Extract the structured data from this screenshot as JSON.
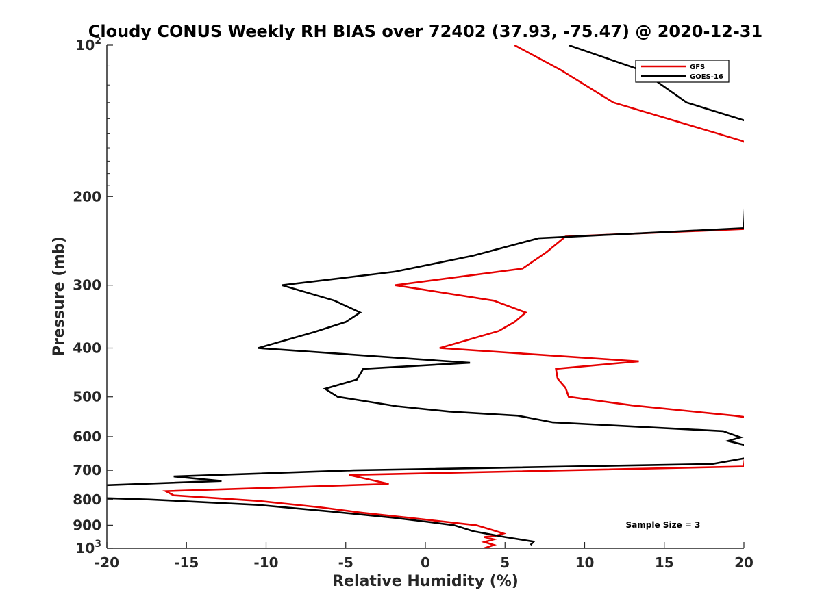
{
  "chart_data": {
    "type": "line",
    "title": "Cloudy CONUS Weekly RH BIAS over 72402 (37.93, -75.47) @ 2020-12-31",
    "xlabel": "Relative Humidity (%)",
    "ylabel": "Pressure (mb)",
    "xlim": [
      -20,
      20
    ],
    "ylim": [
      100,
      1000
    ],
    "y_scale": "log",
    "y_reversed": true,
    "x_ticks": [
      -20,
      -15,
      -10,
      -5,
      0,
      5,
      10,
      15,
      20
    ],
    "x_tick_labels": [
      "-20",
      "-15",
      "-10",
      "-5",
      "0",
      "5",
      "10",
      "15",
      "20"
    ],
    "y_ticks": [
      {
        "value": 100,
        "base": "10",
        "exp": "2"
      },
      {
        "value": 200,
        "label": "200"
      },
      {
        "value": 300,
        "label": "300"
      },
      {
        "value": 400,
        "label": "400"
      },
      {
        "value": 500,
        "label": "500"
      },
      {
        "value": 600,
        "label": "600"
      },
      {
        "value": 700,
        "label": "700"
      },
      {
        "value": 800,
        "label": "800"
      },
      {
        "value": 900,
        "label": "900"
      },
      {
        "value": 1000,
        "base": "10",
        "exp": "3"
      }
    ],
    "grid": false,
    "legend_position": "top-right",
    "annotation": "Sample Size = 3",
    "series": [
      {
        "name": "GFS",
        "color": "#e50000",
        "points": [
          [
            5.6,
            100
          ],
          [
            8.5,
            112
          ],
          [
            11.8,
            130
          ],
          [
            19.9,
            155
          ],
          [
            20.4,
            158
          ],
          [
            20,
            232
          ],
          [
            8.8,
            240
          ],
          [
            7.6,
            258
          ],
          [
            6.1,
            278
          ],
          [
            -1.9,
            300
          ],
          [
            4.3,
            322
          ],
          [
            6.3,
            340
          ],
          [
            5.6,
            355
          ],
          [
            4.6,
            370
          ],
          [
            0.9,
            400
          ],
          [
            13.4,
            425
          ],
          [
            8.2,
            440
          ],
          [
            8.3,
            460
          ],
          [
            8.8,
            480
          ],
          [
            9.0,
            500
          ],
          [
            13,
            520
          ],
          [
            19.4,
            545
          ],
          [
            20.3,
            550
          ],
          [
            20,
            688
          ],
          [
            -4.8,
            715
          ],
          [
            -2.3,
            745
          ],
          [
            -16.3,
            770
          ],
          [
            -15.8,
            785
          ],
          [
            -10.5,
            805
          ],
          [
            -6.5,
            830
          ],
          [
            -4.0,
            850
          ],
          [
            -1.0,
            870
          ],
          [
            3.2,
            900
          ],
          [
            4.2,
            920
          ],
          [
            4.9,
            935
          ],
          [
            4.4,
            945
          ],
          [
            3.7,
            950
          ],
          [
            4.3,
            960
          ],
          [
            3.7,
            972
          ],
          [
            4.3,
            985
          ],
          [
            3.7,
            1000
          ]
        ]
      },
      {
        "name": "GOES-16",
        "color": "#000000",
        "points": [
          [
            9.0,
            100
          ],
          [
            13.5,
            112
          ],
          [
            16.4,
            130
          ],
          [
            20.3,
            142
          ],
          [
            20,
            231
          ],
          [
            7.1,
            242
          ],
          [
            3.0,
            262
          ],
          [
            -1.9,
            282
          ],
          [
            -9.0,
            300
          ],
          [
            -5.7,
            322
          ],
          [
            -4.1,
            340
          ],
          [
            -5.0,
            355
          ],
          [
            -7.0,
            372
          ],
          [
            -10.5,
            400
          ],
          [
            2.8,
            428
          ],
          [
            -3.9,
            440
          ],
          [
            -4.3,
            462
          ],
          [
            -6.3,
            482
          ],
          [
            -5.5,
            500
          ],
          [
            -1.8,
            522
          ],
          [
            1.5,
            535
          ],
          [
            5.8,
            545
          ],
          [
            8.0,
            562
          ],
          [
            18.7,
            585
          ],
          [
            19.8,
            602
          ],
          [
            19.0,
            612
          ],
          [
            20.2,
            625
          ],
          [
            20.3,
            660
          ],
          [
            18.0,
            680
          ],
          [
            -4.5,
            700
          ],
          [
            -15.8,
            720
          ],
          [
            -12.8,
            735
          ],
          [
            -20.5,
            750
          ],
          [
            -20,
            795
          ],
          [
            -17.3,
            800
          ],
          [
            -10.5,
            820
          ],
          [
            -6.0,
            845
          ],
          [
            -2.0,
            870
          ],
          [
            0,
            885
          ],
          [
            1.8,
            900
          ],
          [
            3.0,
            925
          ],
          [
            5.0,
            950
          ],
          [
            6.8,
            970
          ],
          [
            6.6,
            985
          ]
        ]
      }
    ]
  }
}
